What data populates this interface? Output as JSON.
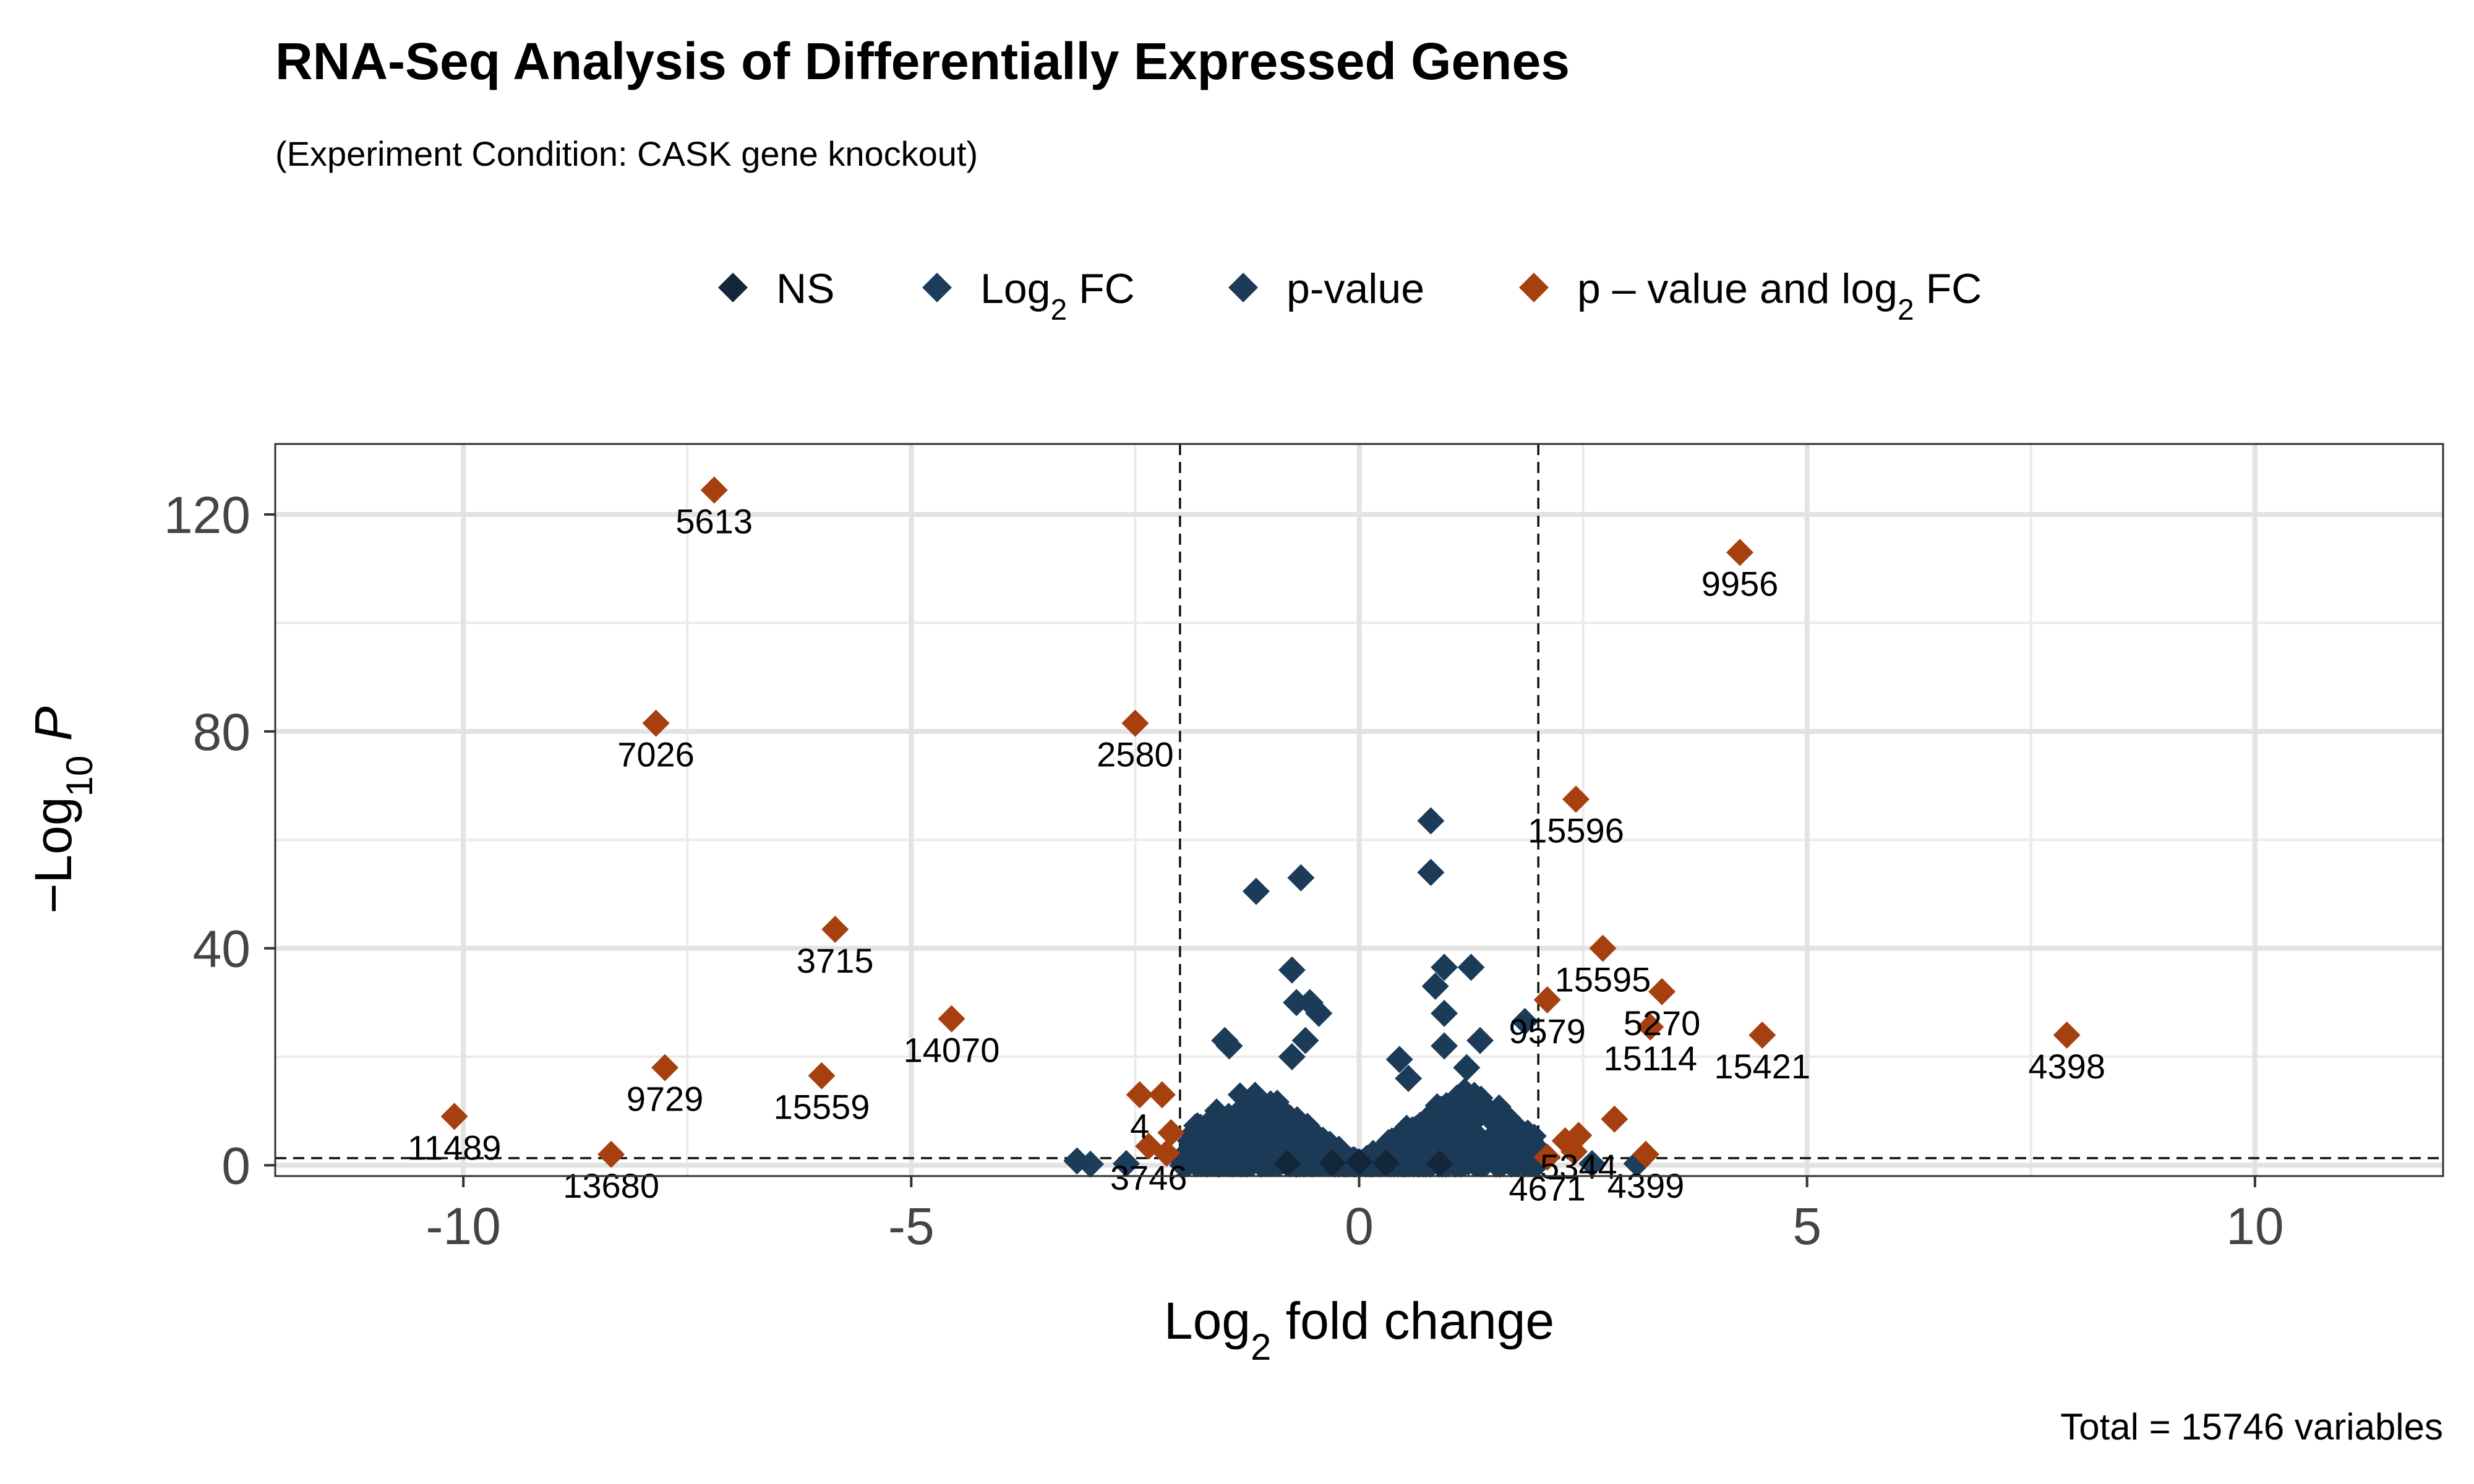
{
  "chart_data": {
    "type": "scatter",
    "title": "RNA-Seq Analysis of Differentially Expressed Genes",
    "subtitle": "(Experiment Condition: CASK gene knockout)",
    "caption": "Total = 15746 variables",
    "xlabel": {
      "main": "Log",
      "sub": "2",
      "rest": " fold change"
    },
    "ylabel": {
      "prefix": "−Log",
      "sub": "10",
      "rest": " P"
    },
    "xlim": [
      -12.1,
      12.1
    ],
    "ylim": [
      -2,
      133
    ],
    "x_ticks": [
      -10,
      -5,
      0,
      5,
      10
    ],
    "y_ticks": [
      0,
      40,
      80,
      120
    ],
    "fc_cutoff": 2,
    "p_cutoff_neglog10": 1.3,
    "grid": true,
    "legend_position": "top",
    "legend": [
      {
        "name": "NS",
        "color": "#13263a",
        "parts": [
          {
            "t": "NS"
          }
        ]
      },
      {
        "name": "Log2 FC",
        "color": "#1d3d5c",
        "parts": [
          {
            "t": "Log"
          },
          {
            "t": "2",
            "sub": true
          },
          {
            "t": " FC"
          }
        ]
      },
      {
        "name": "p-value",
        "color": "#1c3b58",
        "parts": [
          {
            "t": "p-value"
          }
        ]
      },
      {
        "name": "p-value and log2 FC",
        "color": "#a6400f",
        "parts": [
          {
            "t": "p – value and log"
          },
          {
            "t": "2",
            "sub": true
          },
          {
            "t": " FC"
          }
        ]
      }
    ],
    "series": [
      {
        "name": "p-value and log2 FC",
        "color": "#a6400f",
        "points": [
          {
            "x": -7.2,
            "y": 124.5,
            "label": "5613"
          },
          {
            "x": 4.25,
            "y": 113,
            "label": "9956"
          },
          {
            "x": -7.85,
            "y": 81.5,
            "label": "7026"
          },
          {
            "x": -2.5,
            "y": 81.5,
            "label": "2580"
          },
          {
            "x": 2.42,
            "y": 67.5,
            "label": "15596"
          },
          {
            "x": -5.85,
            "y": 43.5,
            "label": "3715"
          },
          {
            "x": 2.72,
            "y": 40,
            "label": "15595"
          },
          {
            "x": 3.38,
            "y": 32,
            "label": "5270"
          },
          {
            "x": 2.1,
            "y": 30.5,
            "label": "9579"
          },
          {
            "x": -4.55,
            "y": 27,
            "label": "14070"
          },
          {
            "x": 3.25,
            "y": 25.5,
            "label": "15114"
          },
          {
            "x": 4.5,
            "y": 24,
            "label": "15421"
          },
          {
            "x": 7.9,
            "y": 24,
            "label": "4398"
          },
          {
            "x": -7.75,
            "y": 18,
            "label": "9729"
          },
          {
            "x": -6.0,
            "y": 16.5,
            "label": "15559"
          },
          {
            "x": -10.1,
            "y": 9,
            "label": "11489"
          },
          {
            "x": -8.35,
            "y": 2,
            "label": "13680"
          },
          {
            "x": -2.45,
            "y": 13,
            "label": "4"
          },
          {
            "x": -2.2,
            "y": 13,
            "label": ""
          },
          {
            "x": -2.1,
            "y": 6,
            "label": ""
          },
          {
            "x": -2.35,
            "y": 3.5,
            "label": "3746"
          },
          {
            "x": -2.15,
            "y": 2.2,
            "label": ""
          },
          {
            "x": 2.85,
            "y": 8.5,
            "label": ""
          },
          {
            "x": 2.45,
            "y": 5.5,
            "label": "5344"
          },
          {
            "x": 2.3,
            "y": 4.5,
            "label": ""
          },
          {
            "x": 2.4,
            "y": 2.5,
            "label": ""
          },
          {
            "x": 3.2,
            "y": 2,
            "label": "4399"
          },
          {
            "x": 2.1,
            "y": 1.5,
            "label": "4671"
          }
        ]
      },
      {
        "name": "p-value",
        "color": "#1c3b58",
        "points": [
          {
            "x": 0.8,
            "y": 63.5
          },
          {
            "x": 0.8,
            "y": 54
          },
          {
            "x": -0.65,
            "y": 53
          },
          {
            "x": -1.15,
            "y": 50.5
          },
          {
            "x": -0.75,
            "y": 36
          },
          {
            "x": 1.25,
            "y": 36.5
          },
          {
            "x": 0.95,
            "y": 36.5
          },
          {
            "x": 0.85,
            "y": 33
          },
          {
            "x": -0.55,
            "y": 30
          },
          {
            "x": -0.45,
            "y": 28
          },
          {
            "x": -0.7,
            "y": 30
          },
          {
            "x": 0.95,
            "y": 28
          },
          {
            "x": 1.35,
            "y": 23
          },
          {
            "x": -1.5,
            "y": 23
          },
          {
            "x": -1.45,
            "y": 22
          },
          {
            "x": -0.6,
            "y": 23
          },
          {
            "x": 0.95,
            "y": 22
          },
          {
            "x": 0.45,
            "y": 19.5
          },
          {
            "x": 1.2,
            "y": 18
          },
          {
            "x": 0.55,
            "y": 16
          },
          {
            "x": -0.75,
            "y": 20
          },
          {
            "x": 1.85,
            "y": 26.5
          },
          {
            "x": -3.15,
            "y": 0.8
          },
          {
            "x": -1.7,
            "y": 1.2
          },
          {
            "x": -1.8,
            "y": 2
          }
        ]
      },
      {
        "name": "Log2 FC",
        "color": "#1d3d5c",
        "points": [
          {
            "x": -2.6,
            "y": 0.3
          },
          {
            "x": 2.6,
            "y": 0.3
          },
          {
            "x": -3.0,
            "y": 0.2
          },
          {
            "x": 3.1,
            "y": 0.3
          }
        ]
      },
      {
        "name": "NS",
        "color": "#13263a",
        "points": [
          {
            "x": -0.3,
            "y": 0.4
          },
          {
            "x": 0.3,
            "y": 0.4
          },
          {
            "x": 0.0,
            "y": 0.6
          },
          {
            "x": -0.8,
            "y": 0.3
          },
          {
            "x": 0.9,
            "y": 0.3
          }
        ]
      }
    ],
    "dense_cloud": {
      "series": "p-value",
      "color": "#1b3a57",
      "x_range": [
        -2.0,
        2.0
      ],
      "peak_y": 14,
      "count": 900
    }
  }
}
